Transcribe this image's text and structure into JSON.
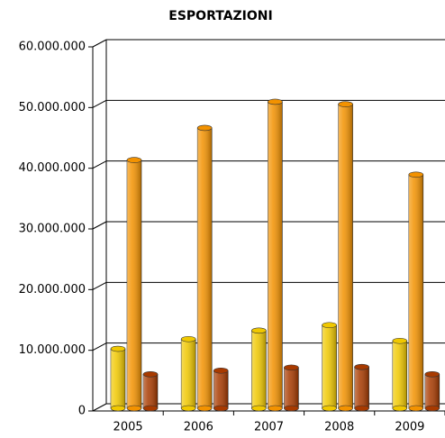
{
  "chart_data": {
    "type": "bar",
    "title": "ESPORTAZIONI",
    "categories": [
      "2005",
      "2006",
      "2007",
      "2008",
      "2009"
    ],
    "series": [
      {
        "color": "#f0c800",
        "values": [
          9800000,
          11400000,
          12800000,
          13700000,
          11100000
        ]
      },
      {
        "color": "#f39200",
        "values": [
          40900000,
          46200000,
          50500000,
          50100000,
          38500000
        ]
      },
      {
        "color": "#a83a00",
        "values": [
          5600000,
          6200000,
          6700000,
          6800000,
          5600000
        ]
      }
    ],
    "ylim": [
      0,
      60000000
    ],
    "yticks": [
      0,
      {
        "value": 10000000,
        "label": "10.000.000"
      },
      {
        "value": 20000000,
        "label": "20.000.000"
      },
      {
        "value": 30000000,
        "label": "30.000.000"
      },
      {
        "value": 40000000,
        "label": "40.000.000"
      },
      {
        "value": 50000000,
        "label": "50.000.000"
      },
      {
        "value": 60000000,
        "label": "60.000.000"
      }
    ],
    "grid": true
  }
}
